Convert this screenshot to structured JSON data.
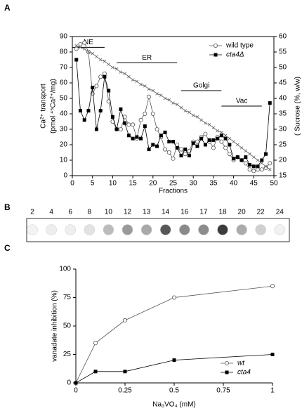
{
  "chart_data": [
    {
      "type": "line",
      "panel": "A",
      "x_label": "Fractions",
      "y_label": [
        "Ca²⁺ transport",
        "(pmol ⁴⁵Ca²⁺/mg)"
      ],
      "y2_label": "( Sucrose (%, w/w)",
      "x": [
        1,
        2,
        3,
        4,
        5,
        6,
        7,
        8,
        9,
        10,
        11,
        12,
        13,
        14,
        15,
        16,
        17,
        18,
        19,
        20,
        21,
        22,
        23,
        24,
        25,
        26,
        27,
        28,
        29,
        30,
        31,
        32,
        33,
        34,
        35,
        36,
        37,
        38,
        39,
        40,
        41,
        42,
        43,
        44,
        45,
        46,
        47,
        48,
        49
      ],
      "xlim": [
        0,
        50
      ],
      "xticks": [
        0,
        5,
        10,
        15,
        20,
        25,
        30,
        35,
        40,
        45,
        50
      ],
      "ylim": [
        0,
        90
      ],
      "yticks": [
        0,
        10,
        20,
        30,
        40,
        50,
        60,
        70,
        80,
        90
      ],
      "y2lim": [
        15,
        60
      ],
      "y2ticks": [
        15,
        20,
        25,
        30,
        35,
        40,
        45,
        50,
        55,
        60
      ],
      "frame": true,
      "legend": "top-right",
      "series": [
        {
          "name": "wild type",
          "color": "#555555",
          "marker": "circle",
          "values": [
            82,
            85,
            86,
            80,
            53,
            58,
            64,
            66,
            48,
            35,
            30,
            30,
            38,
            33,
            33,
            24,
            36,
            40,
            51,
            40,
            30,
            25,
            17,
            15,
            11,
            20,
            17,
            14,
            16,
            22,
            22,
            25,
            27,
            22,
            18,
            25,
            22,
            18,
            14,
            10,
            12,
            10,
            8,
            4,
            3,
            4,
            4,
            5,
            8
          ]
        },
        {
          "name": "cta4Δ",
          "color": "#000000",
          "marker": "square",
          "values": [
            75,
            42,
            36,
            42,
            57,
            30,
            42,
            64,
            55,
            38,
            30,
            43,
            34,
            26,
            24,
            25,
            24,
            32,
            17,
            20,
            19,
            26,
            28,
            22,
            22,
            18,
            13,
            17,
            13,
            21,
            19,
            24,
            20,
            23,
            23,
            24,
            26,
            24,
            20,
            11,
            12,
            10,
            12,
            7,
            6,
            6,
            10,
            14,
            47
          ]
        },
        {
          "color": "#666666",
          "marker": "x",
          "axis": "y2",
          "values": [
            57,
            56.5,
            56,
            55,
            54.5,
            53.5,
            52.5,
            52,
            51,
            50,
            49.5,
            48.5,
            48,
            47,
            46,
            45.5,
            44.5,
            44,
            43,
            42.5,
            41.5,
            41,
            40,
            39.5,
            38.5,
            38,
            37,
            36,
            35.5,
            34.5,
            34,
            33,
            32,
            31.5,
            30.5,
            29.5,
            29,
            28,
            27,
            26,
            25,
            24,
            23,
            22,
            21,
            20,
            19,
            18,
            17
          ]
        }
      ],
      "regions": [
        {
          "label": "NE",
          "x": [
            0,
            8
          ],
          "y": 83
        },
        {
          "label": "ER",
          "x": [
            11,
            26
          ],
          "y": 73
        },
        {
          "label": "Golgi",
          "x": [
            27,
            37
          ],
          "y": 55
        },
        {
          "label": "Vac",
          "x": [
            37,
            47
          ],
          "y": 45
        }
      ]
    },
    {
      "type": "line",
      "panel": "C",
      "x_label": "Na₃VO₄ (mM)",
      "y_label": [
        "vanadate inhibition (%)"
      ],
      "x": [
        0,
        0.1,
        0.25,
        0.5,
        1
      ],
      "xlim": [
        0,
        1
      ],
      "xticks": [
        0,
        0.25,
        0.5,
        0.75,
        1
      ],
      "ylim": [
        0,
        100
      ],
      "yticks": [
        0,
        25,
        50,
        75,
        100
      ],
      "frame": false,
      "legend": "bottom-right",
      "series": [
        {
          "name": "wt",
          "color": "#555555",
          "marker": "circle",
          "values": [
            0,
            35,
            55,
            75,
            85
          ]
        },
        {
          "name": "cta4",
          "color": "#000000",
          "marker": "square",
          "values": [
            0,
            10,
            10,
            20,
            25
          ]
        }
      ]
    }
  ],
  "blot": {
    "panel": "B",
    "labels": [
      "2",
      "4",
      "6",
      "8",
      "10",
      "12",
      "13",
      "14",
      "16",
      "17",
      "18",
      "20",
      "22",
      "24"
    ],
    "colors": [
      "#f3f3f3",
      "#eeeeee",
      "#efefef",
      "#e3e3e3",
      "#bcbcbc",
      "#9a9a9a",
      "#a9a9a9",
      "#575757",
      "#8a8a8a",
      "#8c8c8c",
      "#3c3c3c",
      "#ababab",
      "#cfcfcf",
      "#f1f1f1"
    ]
  }
}
